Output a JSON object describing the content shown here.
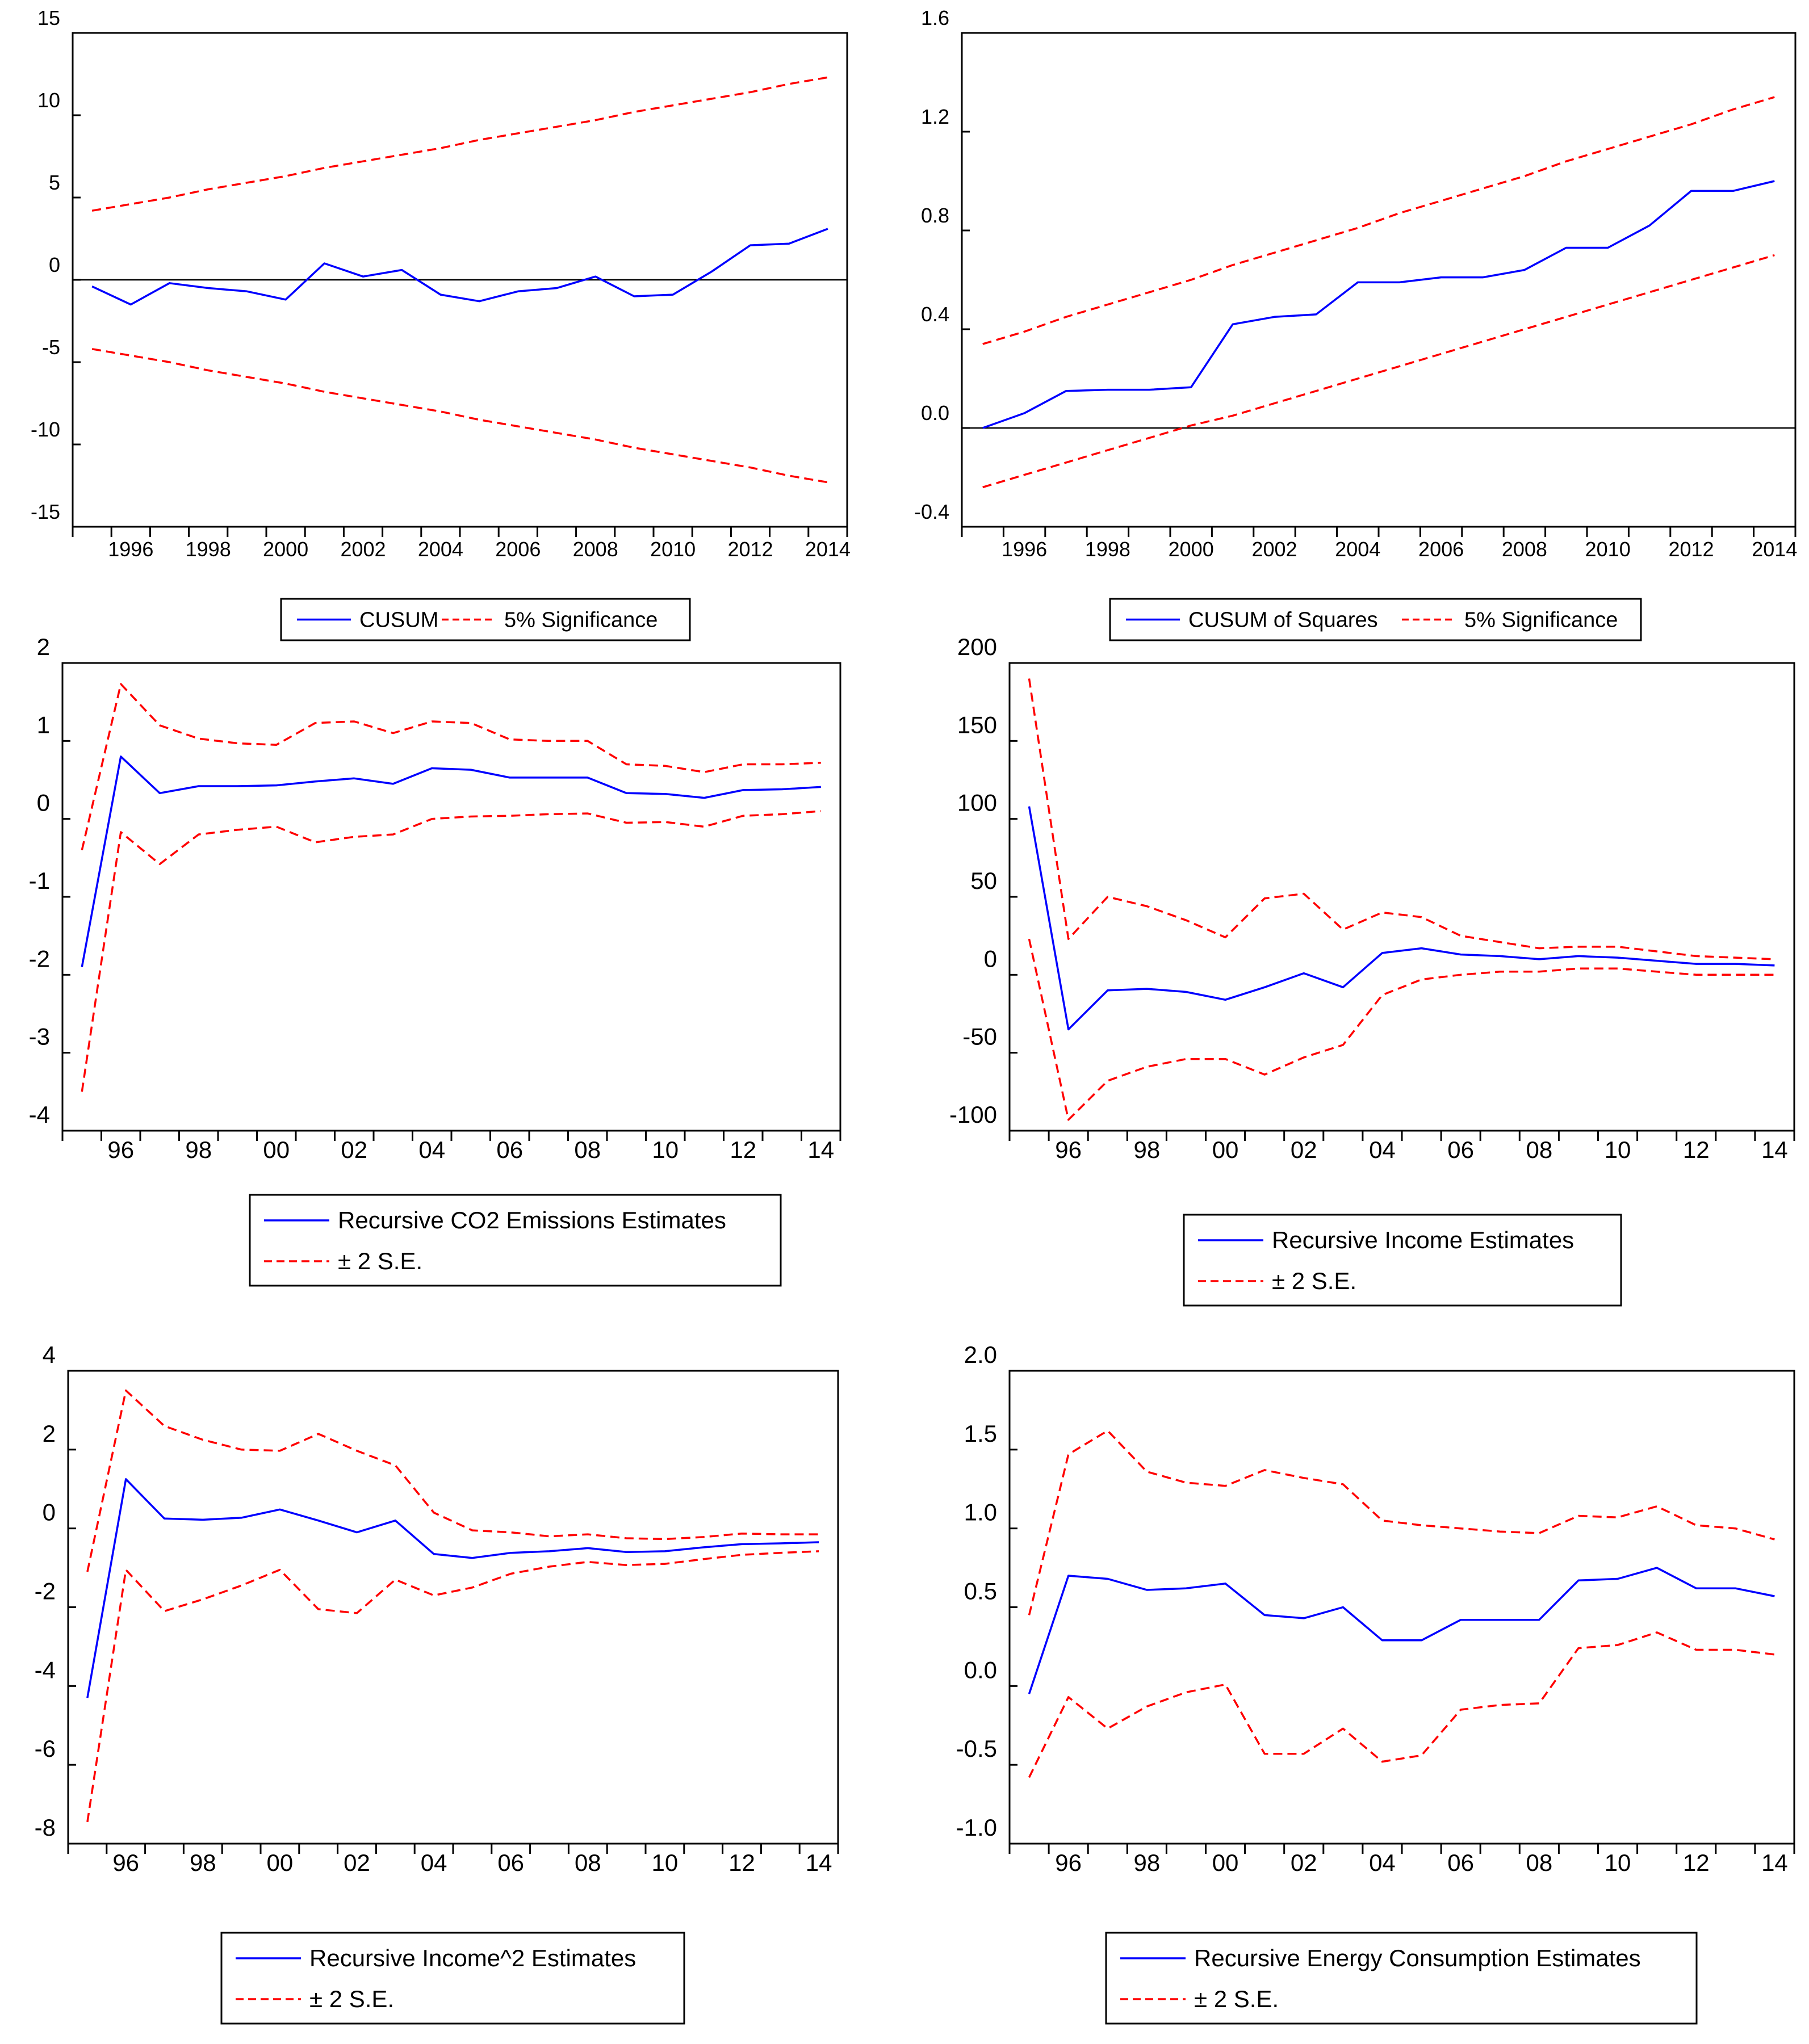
{
  "figure": {
    "description_free": true
  },
  "chart_data": [
    {
      "id": "cusum",
      "type": "line",
      "x": [
        1995,
        1996,
        1997,
        1998,
        1999,
        2000,
        2001,
        2002,
        2003,
        2004,
        2005,
        2006,
        2007,
        2008,
        2009,
        2010,
        2011,
        2012,
        2013,
        2014
      ],
      "ylim": [
        -15,
        15
      ],
      "yticks": [
        -15,
        -10,
        -5,
        0,
        5,
        10,
        15
      ],
      "ytick_labels": [
        "-15",
        "-10",
        "-5",
        "0",
        "5",
        "10",
        "15"
      ],
      "xticks": [
        1996,
        1998,
        2000,
        2002,
        2004,
        2006,
        2008,
        2010,
        2012,
        2014
      ],
      "xtick_labels": [
        "1996",
        "1998",
        "2000",
        "2002",
        "2004",
        "2006",
        "2008",
        "2010",
        "2012",
        "2014"
      ],
      "zero_line": true,
      "series": [
        {
          "name": "CUSUM",
          "color": "#0000ff",
          "dash": "solid",
          "values": [
            -0.4,
            -1.5,
            -0.2,
            -0.5,
            -0.7,
            -1.2,
            1.0,
            0.2,
            0.6,
            -0.9,
            -1.3,
            -0.7,
            -0.5,
            0.2,
            -1.0,
            -0.9,
            0.5,
            2.1,
            2.2,
            3.1
          ]
        },
        {
          "name": "5% Significance",
          "color": "#ff0000",
          "dash": "dashed",
          "values": [
            4.2,
            4.6,
            5.0,
            5.5,
            5.9,
            6.3,
            6.8,
            7.2,
            7.6,
            8.0,
            8.5,
            8.9,
            9.3,
            9.7,
            10.2,
            10.6,
            11.0,
            11.4,
            11.9,
            12.3
          ]
        },
        {
          "name": "5% Significance (lower)",
          "color": "#ff0000",
          "dash": "dashed",
          "in_legend": false,
          "values": [
            -4.2,
            -4.6,
            -5.0,
            -5.5,
            -5.9,
            -6.3,
            -6.8,
            -7.2,
            -7.6,
            -8.0,
            -8.5,
            -8.9,
            -9.3,
            -9.7,
            -10.2,
            -10.6,
            -11.0,
            -11.4,
            -11.9,
            -12.3
          ]
        }
      ],
      "legend": {
        "layout": "row",
        "entries": [
          "CUSUM",
          "5% Significance"
        ]
      }
    },
    {
      "id": "cusum-squares",
      "type": "line",
      "x": [
        1995,
        1996,
        1997,
        1998,
        1999,
        2000,
        2001,
        2002,
        2003,
        2004,
        2005,
        2006,
        2007,
        2008,
        2009,
        2010,
        2011,
        2012,
        2013,
        2014
      ],
      "ylim": [
        -0.4,
        1.6
      ],
      "yticks": [
        -0.4,
        0.0,
        0.4,
        0.8,
        1.2,
        1.6
      ],
      "ytick_labels": [
        "-0.4",
        "0.0",
        "0.4",
        "0.8",
        "1.2",
        "1.6"
      ],
      "xticks": [
        1996,
        1998,
        2000,
        2002,
        2004,
        2006,
        2008,
        2010,
        2012,
        2014
      ],
      "xtick_labels": [
        "1996",
        "1998",
        "2000",
        "2002",
        "2004",
        "2006",
        "2008",
        "2010",
        "2012",
        "2014"
      ],
      "zero_line": true,
      "series": [
        {
          "name": "CUSUM of Squares",
          "color": "#0000ff",
          "dash": "solid",
          "values": [
            0.0,
            0.06,
            0.15,
            0.155,
            0.155,
            0.165,
            0.42,
            0.45,
            0.46,
            0.59,
            0.59,
            0.61,
            0.61,
            0.64,
            0.73,
            0.73,
            0.82,
            0.96,
            0.96,
            1.0
          ]
        },
        {
          "name": "5% Significance",
          "color": "#ff0000",
          "dash": "dashed",
          "values": [
            0.34,
            0.39,
            0.45,
            0.5,
            0.55,
            0.6,
            0.66,
            0.71,
            0.76,
            0.81,
            0.87,
            0.92,
            0.97,
            1.02,
            1.08,
            1.13,
            1.18,
            1.23,
            1.29,
            1.34
          ]
        },
        {
          "name": "5% Significance (lower)",
          "color": "#ff0000",
          "dash": "dashed",
          "in_legend": false,
          "values": [
            -0.24,
            -0.19,
            -0.14,
            -0.09,
            -0.04,
            0.01,
            0.05,
            0.1,
            0.15,
            0.2,
            0.25,
            0.3,
            0.35,
            0.4,
            0.45,
            0.5,
            0.55,
            0.6,
            0.65,
            0.7
          ]
        }
      ],
      "legend": {
        "layout": "row",
        "entries": [
          "CUSUM of Squares",
          "5% Significance"
        ]
      }
    },
    {
      "id": "co2",
      "type": "line",
      "x": [
        1995,
        1996,
        1997,
        1998,
        1999,
        2000,
        2001,
        2002,
        2003,
        2004,
        2005,
        2006,
        2007,
        2008,
        2009,
        2010,
        2011,
        2012,
        2013,
        2014
      ],
      "ylim": [
        -4,
        2
      ],
      "yticks": [
        -4,
        -3,
        -2,
        -1,
        0,
        1,
        2
      ],
      "ytick_labels": [
        "-4",
        "-3",
        "-2",
        "-1",
        "0",
        "1",
        "2"
      ],
      "xticks": [
        1996,
        1998,
        2000,
        2002,
        2004,
        2006,
        2008,
        2010,
        2012,
        2014
      ],
      "xtick_labels": [
        "96",
        "98",
        "00",
        "02",
        "04",
        "06",
        "08",
        "10",
        "12",
        "14"
      ],
      "zero_line": false,
      "series": [
        {
          "name": "Recursive CO2 Emissions Estimates",
          "color": "#0000ff",
          "dash": "solid",
          "values": [
            -1.9,
            0.8,
            0.33,
            0.42,
            0.42,
            0.43,
            0.48,
            0.52,
            0.45,
            0.65,
            0.63,
            0.53,
            0.53,
            0.53,
            0.33,
            0.32,
            0.27,
            0.37,
            0.38,
            0.41
          ]
        },
        {
          "name": "± 2 S.E.",
          "color": "#ff0000",
          "dash": "dashed",
          "values": [
            -0.4,
            1.73,
            1.2,
            1.03,
            0.97,
            0.95,
            1.23,
            1.25,
            1.1,
            1.25,
            1.23,
            1.02,
            1.0,
            1.0,
            0.7,
            0.68,
            0.6,
            0.7,
            0.7,
            0.72
          ]
        },
        {
          "name": "± 2 S.E. (lower)",
          "color": "#ff0000",
          "dash": "dashed",
          "in_legend": false,
          "values": [
            -3.5,
            -0.17,
            -0.58,
            -0.2,
            -0.14,
            -0.1,
            -0.3,
            -0.23,
            -0.2,
            0.0,
            0.03,
            0.04,
            0.06,
            0.07,
            -0.05,
            -0.04,
            -0.1,
            0.04,
            0.06,
            0.1
          ]
        }
      ],
      "legend": {
        "layout": "column",
        "entries": [
          "Recursive CO2 Emissions Estimates",
          "± 2 S.E."
        ]
      }
    },
    {
      "id": "income",
      "type": "line",
      "x": [
        1995,
        1996,
        1997,
        1998,
        1999,
        2000,
        2001,
        2002,
        2003,
        2004,
        2005,
        2006,
        2007,
        2008,
        2009,
        2010,
        2011,
        2012,
        2013,
        2014
      ],
      "ylim": [
        -100,
        200
      ],
      "yticks": [
        -100,
        -50,
        0,
        50,
        100,
        150,
        200
      ],
      "ytick_labels": [
        "-100",
        "-50",
        "0",
        "50",
        "100",
        "150",
        "200"
      ],
      "xticks": [
        1996,
        1998,
        2000,
        2002,
        2004,
        2006,
        2008,
        2010,
        2012,
        2014
      ],
      "xtick_labels": [
        "96",
        "98",
        "00",
        "02",
        "04",
        "06",
        "08",
        "10",
        "12",
        "14"
      ],
      "zero_line": false,
      "series": [
        {
          "name": "Recursive Income Estimates",
          "color": "#0000ff",
          "dash": "solid",
          "values": [
            108,
            -35,
            -10,
            -9,
            -11,
            -16,
            -8,
            1,
            -8,
            14,
            17,
            13,
            12,
            10,
            12,
            11,
            9,
            7,
            7,
            6
          ]
        },
        {
          "name": "± 2 S.E.",
          "color": "#ff0000",
          "dash": "dashed",
          "values": [
            190,
            23,
            50,
            44,
            35,
            24,
            49,
            52,
            29,
            40,
            37,
            25,
            21,
            17,
            18,
            18,
            15,
            12,
            11,
            10
          ]
        },
        {
          "name": "± 2 S.E. (lower)",
          "color": "#ff0000",
          "dash": "dashed",
          "in_legend": false,
          "values": [
            23,
            -93,
            -68,
            -59,
            -54,
            -54,
            -64,
            -53,
            -45,
            -13,
            -3,
            0,
            2,
            2,
            4,
            4,
            2,
            0,
            0,
            0
          ]
        }
      ],
      "legend": {
        "layout": "column",
        "entries": [
          "Recursive Income Estimates",
          "± 2 S.E."
        ]
      }
    },
    {
      "id": "income-squared",
      "type": "line",
      "x": [
        1995,
        1996,
        1997,
        1998,
        1999,
        2000,
        2001,
        2002,
        2003,
        2004,
        2005,
        2006,
        2007,
        2008,
        2009,
        2010,
        2011,
        2012,
        2013,
        2014
      ],
      "ylim": [
        -8,
        4
      ],
      "yticks": [
        -8,
        -6,
        -4,
        -2,
        0,
        2,
        4
      ],
      "ytick_labels": [
        "-8",
        "-6",
        "-4",
        "-2",
        "0",
        "2",
        "4"
      ],
      "xticks": [
        1996,
        1998,
        2000,
        2002,
        2004,
        2006,
        2008,
        2010,
        2012,
        2014
      ],
      "xtick_labels": [
        "96",
        "98",
        "00",
        "02",
        "04",
        "06",
        "08",
        "10",
        "12",
        "14"
      ],
      "zero_line": false,
      "series": [
        {
          "name": "Recursive Income^2 Estimates",
          "color": "#0000ff",
          "dash": "solid",
          "values": [
            -4.3,
            1.25,
            0.25,
            0.22,
            0.27,
            0.48,
            0.2,
            -0.1,
            0.2,
            -0.65,
            -0.75,
            -0.62,
            -0.58,
            -0.5,
            -0.6,
            -0.58,
            -0.48,
            -0.4,
            -0.38,
            -0.35
          ]
        },
        {
          "name": "± 2 S.E.",
          "color": "#ff0000",
          "dash": "dashed",
          "values": [
            -1.1,
            3.5,
            2.6,
            2.25,
            2.0,
            1.97,
            2.4,
            1.97,
            1.6,
            0.4,
            -0.05,
            -0.1,
            -0.2,
            -0.15,
            -0.25,
            -0.27,
            -0.22,
            -0.13,
            -0.15,
            -0.15
          ]
        },
        {
          "name": "± 2 S.E. (lower)",
          "color": "#ff0000",
          "dash": "dashed",
          "in_legend": false,
          "values": [
            -7.45,
            -1.05,
            -2.1,
            -1.8,
            -1.45,
            -1.05,
            -2.05,
            -2.15,
            -1.3,
            -1.7,
            -1.5,
            -1.15,
            -0.97,
            -0.85,
            -0.93,
            -0.9,
            -0.78,
            -0.67,
            -0.62,
            -0.58
          ]
        }
      ],
      "legend": {
        "layout": "column",
        "entries": [
          "Recursive Income^2 Estimates",
          "± 2 S.E."
        ]
      }
    },
    {
      "id": "energy",
      "type": "line",
      "x": [
        1995,
        1996,
        1997,
        1998,
        1999,
        2000,
        2001,
        2002,
        2003,
        2004,
        2005,
        2006,
        2007,
        2008,
        2009,
        2010,
        2011,
        2012,
        2013,
        2014
      ],
      "ylim": [
        -1.0,
        2.0
      ],
      "yticks": [
        -1.0,
        -0.5,
        0.0,
        0.5,
        1.0,
        1.5,
        2.0
      ],
      "ytick_labels": [
        "-1.0",
        "-0.5",
        "0.0",
        "0.5",
        "1.0",
        "1.5",
        "2.0"
      ],
      "xticks": [
        1996,
        1998,
        2000,
        2002,
        2004,
        2006,
        2008,
        2010,
        2012,
        2014
      ],
      "xtick_labels": [
        "96",
        "98",
        "00",
        "02",
        "04",
        "06",
        "08",
        "10",
        "12",
        "14"
      ],
      "zero_line": false,
      "series": [
        {
          "name": "Recursive Energy Consumption Estimates",
          "color": "#0000ff",
          "dash": "solid",
          "values": [
            -0.05,
            0.7,
            0.68,
            0.61,
            0.62,
            0.65,
            0.45,
            0.43,
            0.5,
            0.29,
            0.29,
            0.42,
            0.42,
            0.42,
            0.67,
            0.68,
            0.75,
            0.62,
            0.62,
            0.57
          ]
        },
        {
          "name": "± 2 S.E.",
          "color": "#ff0000",
          "dash": "dashed",
          "values": [
            0.45,
            1.47,
            1.62,
            1.36,
            1.29,
            1.27,
            1.37,
            1.32,
            1.28,
            1.05,
            1.02,
            1.0,
            0.98,
            0.97,
            1.08,
            1.07,
            1.14,
            1.02,
            1.0,
            0.93
          ]
        },
        {
          "name": "± 2 S.E. (lower)",
          "color": "#ff0000",
          "dash": "dashed",
          "in_legend": false,
          "values": [
            -0.58,
            -0.07,
            -0.27,
            -0.13,
            -0.04,
            0.01,
            -0.43,
            -0.43,
            -0.27,
            -0.48,
            -0.44,
            -0.15,
            -0.12,
            -0.11,
            0.24,
            0.26,
            0.34,
            0.23,
            0.23,
            0.2
          ]
        }
      ],
      "legend": {
        "layout": "column",
        "entries": [
          "Recursive Energy Consumption Estimates",
          "± 2 S.E."
        ]
      }
    }
  ]
}
